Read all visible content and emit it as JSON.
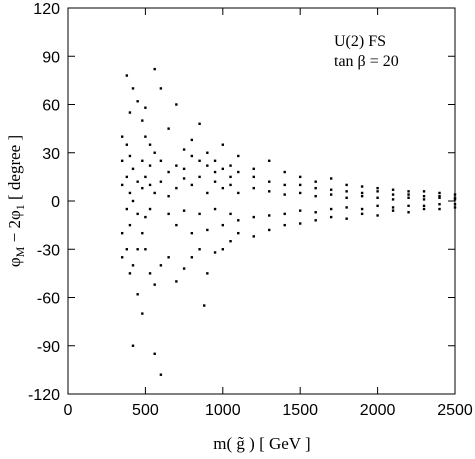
{
  "chart_data": {
    "type": "scatter",
    "annotations": [
      "U(2) FS",
      "tan β = 20"
    ],
    "x_label": "m( g̃ )  [ GeV ]",
    "y_label_parts": [
      "φ",
      "M",
      " − 2φ",
      "1",
      "  [ degree ]"
    ],
    "xlim": [
      0,
      2500
    ],
    "xticks": [
      0,
      500,
      1000,
      1500,
      2000,
      2500
    ],
    "ylim": [
      -120,
      120
    ],
    "yticks": [
      -120,
      -90,
      -60,
      -30,
      0,
      30,
      60,
      90,
      120
    ],
    "color": "#000000",
    "x": [
      350,
      350,
      350,
      350,
      350,
      380,
      380,
      380,
      380,
      380,
      400,
      400,
      400,
      400,
      400,
      420,
      420,
      420,
      420,
      420,
      450,
      450,
      450,
      450,
      450,
      480,
      480,
      480,
      480,
      480,
      500,
      500,
      500,
      500,
      500,
      530,
      530,
      530,
      530,
      530,
      560,
      560,
      560,
      560,
      560,
      600,
      600,
      600,
      600,
      600,
      650,
      650,
      650,
      650,
      650,
      700,
      700,
      700,
      700,
      700,
      750,
      750,
      750,
      750,
      750,
      800,
      800,
      800,
      800,
      800,
      850,
      850,
      850,
      850,
      850,
      900,
      900,
      900,
      900,
      900,
      950,
      950,
      950,
      950,
      950,
      1000,
      1000,
      1000,
      1000,
      1000,
      1050,
      1050,
      1050,
      1050,
      1050,
      1100,
      1100,
      1100,
      1100,
      1100,
      1200,
      1200,
      1200,
      1200,
      1200,
      1300,
      1300,
      1300,
      1300,
      1300,
      1400,
      1400,
      1400,
      1400,
      1400,
      1500,
      1500,
      1500,
      1500,
      1500,
      1600,
      1600,
      1600,
      1600,
      1600,
      1700,
      1700,
      1700,
      1700,
      1700,
      1800,
      1800,
      1800,
      1800,
      1800,
      1900,
      1900,
      1900,
      1900,
      1900,
      2000,
      2000,
      2000,
      2000,
      2000,
      2100,
      2100,
      2100,
      2100,
      2100,
      2200,
      2200,
      2200,
      2200,
      2200,
      2300,
      2300,
      2300,
      2300,
      2300,
      2400,
      2400,
      2400,
      2400,
      2400,
      2500,
      2500,
      2500,
      2500,
      2500,
      880
    ],
    "y": [
      25,
      -20,
      10,
      -35,
      40,
      78,
      -30,
      15,
      -5,
      35,
      55,
      -45,
      5,
      -15,
      28,
      70,
      -90,
      20,
      -40,
      0,
      62,
      -58,
      12,
      -30,
      -8,
      50,
      -70,
      -20,
      25,
      8,
      40,
      -30,
      15,
      -10,
      58,
      35,
      -45,
      22,
      -5,
      10,
      -95,
      82,
      30,
      -52,
      5,
      -108,
      70,
      25,
      -40,
      12,
      45,
      -35,
      18,
      -8,
      3,
      60,
      -50,
      22,
      -15,
      8,
      32,
      -42,
      14,
      -6,
      20,
      38,
      -35,
      10,
      -20,
      28,
      48,
      -30,
      15,
      -8,
      25,
      30,
      -45,
      5,
      -18,
      22,
      25,
      -32,
      12,
      -5,
      18,
      35,
      -30,
      8,
      -15,
      20,
      22,
      -25,
      10,
      -8,
      15,
      28,
      -20,
      5,
      -12,
      18,
      20,
      -22,
      8,
      -10,
      15,
      25,
      -18,
      6,
      -9,
      12,
      18,
      -15,
      4,
      -8,
      10,
      15,
      -14,
      5,
      -6,
      10,
      12,
      -12,
      3,
      -7,
      8,
      14,
      -10,
      4,
      -5,
      7,
      10,
      -11,
      2,
      -4,
      6,
      9,
      -8,
      3,
      -5,
      5,
      8,
      -9,
      2,
      -3,
      6,
      7,
      -6,
      1,
      -4,
      4,
      6,
      -7,
      2,
      -3,
      4,
      6,
      -5,
      1,
      -3,
      3,
      5,
      -5,
      2,
      -2,
      3,
      4,
      -4,
      1,
      -2,
      2,
      -65
    ]
  }
}
